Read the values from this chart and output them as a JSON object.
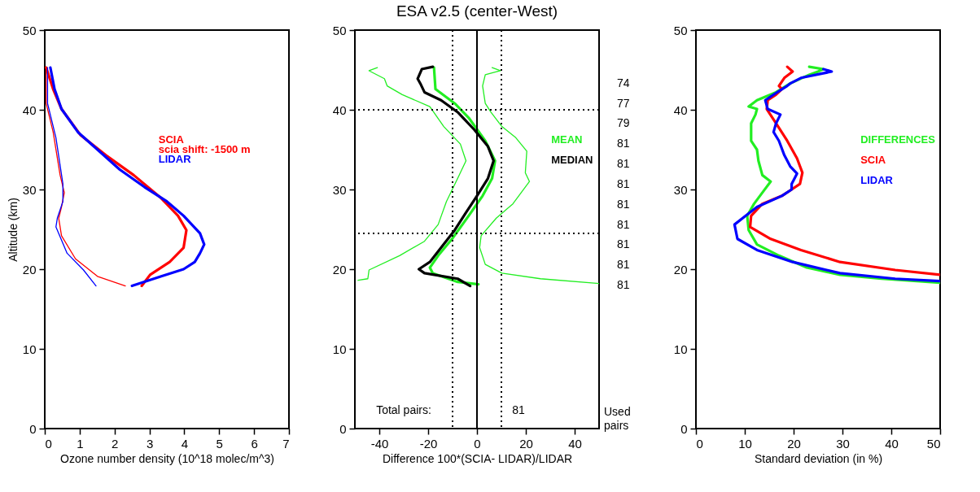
{
  "chart_data": [
    {
      "type": "line",
      "xlabel": "Ozone number density (10^18 molec/m^3)",
      "ylabel": "Altitude (km)",
      "xlim": [
        0,
        7
      ],
      "xticks": [
        0,
        1,
        2,
        3,
        4,
        5,
        6,
        7
      ],
      "ylim": [
        0,
        50
      ],
      "yticks": [
        0,
        10,
        20,
        30,
        40,
        50
      ],
      "legend": "top right",
      "line_style": "solid",
      "annotations": [
        "scia shift: -1500 m"
      ],
      "series": [
        {
          "name": "SCIA",
          "color": "#ff0000",
          "x": [
            0.04,
            0.24,
            0.48,
            1.03,
            1.75,
            2.55,
            3.34,
            3.82,
            4.06,
            3.98,
            3.58,
            3.02,
            2.78
          ],
          "values": [
            45.3,
            42.6,
            40.1,
            36.8,
            34.3,
            31.8,
            28.9,
            26.7,
            24.9,
            22.7,
            20.9,
            19.3,
            17.9
          ]
        },
        {
          "name": "LIDAR",
          "color": "#0000ff",
          "x": [
            0.16,
            0.28,
            0.48,
            0.95,
            1.59,
            2.15,
            2.86,
            3.5,
            3.98,
            4.45,
            4.57,
            4.45,
            4.3,
            3.98,
            3.34,
            2.5
          ],
          "values": [
            45.3,
            42.6,
            40.1,
            37.2,
            34.7,
            32.5,
            30.3,
            28.5,
            26.7,
            24.5,
            23.1,
            22.0,
            20.9,
            20.0,
            19.1,
            17.9
          ]
        },
        {
          "color": "#ff0000",
          "x": [
            0.04,
            0.04,
            0.24,
            0.44,
            0.56,
            0.48,
            0.4,
            0.48,
            0.88,
            1.51,
            2.31
          ],
          "values": [
            45.3,
            40.8,
            37.2,
            31.8,
            29.6,
            27.8,
            26.4,
            24.2,
            21.3,
            19.1,
            17.9
          ]
        },
        {
          "color": "#0000ff",
          "x": [
            0.08,
            0.08,
            0.32,
            0.52,
            0.52,
            0.36,
            0.32,
            0.64,
            1.11,
            1.47
          ],
          "values": [
            45.3,
            40.8,
            36.5,
            30.7,
            28.5,
            26.4,
            25.3,
            22.0,
            19.9,
            17.9
          ]
        }
      ]
    },
    {
      "type": "line",
      "title": "ESA v2.5 (center-West)",
      "xlabel": "Difference 100*(SCIA- LIDAR)/LIDAR",
      "xlim": [
        -50,
        50
      ],
      "xticks": [
        -40,
        -20,
        0,
        20,
        40
      ],
      "ylim": [
        0,
        50
      ],
      "yticks": [
        0,
        10,
        20,
        30,
        40,
        50
      ],
      "legend": "top right",
      "line_style": "solid",
      "ref_lines": [
        {
          "axis": "x",
          "value": -10,
          "color": "#000000",
          "line_style": "dotted"
        },
        {
          "axis": "x",
          "value": 0,
          "color": "#000000",
          "line_style": "solid"
        },
        {
          "axis": "x",
          "value": 10,
          "color": "#000000",
          "line_style": "dotted"
        },
        {
          "axis": "y",
          "value": 40,
          "color": "#000000",
          "line_style": "dotted"
        },
        {
          "axis": "y",
          "value": 24.5,
          "color": "#000000",
          "line_style": "dotted"
        }
      ],
      "annotations": [
        "Total pairs:",
        "81",
        "74",
        "77",
        "79",
        "81",
        "81",
        "81",
        "81",
        "81",
        "81",
        "81",
        "81",
        "Used pairs"
      ],
      "series": [
        {
          "name": "MEAN",
          "color": "#22ee22",
          "x": [
            -17.6,
            -17.0,
            -9.1,
            -3.4,
            3.4,
            7.4,
            6.2,
            2.3,
            -3.4,
            -10.2,
            -15.9,
            -19.3,
            -18.1,
            -7.9,
            0.6
          ],
          "values": [
            45.3,
            42.6,
            40.8,
            39.0,
            36.1,
            33.6,
            31.4,
            29.2,
            26.7,
            23.8,
            21.7,
            20.2,
            19.5,
            18.4,
            18.1
          ]
        },
        {
          "name": "MEDIAN",
          "color": "#000000",
          "x": [
            -18.1,
            -22.6,
            -24.3,
            -23.2,
            -21.5,
            -14.7,
            -7.9,
            -5.7,
            -1.1,
            4.5,
            6.8,
            4.5,
            0,
            -4.5,
            -9.1,
            -14.7,
            -19.3,
            -23.8,
            -21.5,
            -7.9,
            -2.8
          ],
          "values": [
            45.4,
            45.1,
            43.9,
            43.3,
            42.2,
            41.2,
            39.7,
            39.0,
            37.5,
            35.4,
            33.6,
            31.4,
            29.2,
            27.1,
            24.9,
            22.7,
            20.9,
            20.0,
            19.5,
            18.8,
            17.9
          ]
        },
        {
          "color": "#22ee22",
          "x": [
            -40.8,
            -44.2,
            -37.9,
            -36.8,
            -30.6,
            -19.3,
            -13.6,
            -6.8,
            -4.5,
            -7.9,
            -12.5,
            -15.9,
            -21.5,
            -31.7,
            -44.2,
            -44.7,
            -48.7
          ],
          "values": [
            45.3,
            44.9,
            43.9,
            43.0,
            41.9,
            40.4,
            37.9,
            35.7,
            33.6,
            31.4,
            28.5,
            25.6,
            23.5,
            21.7,
            19.9,
            18.8,
            18.6
          ]
        },
        {
          "color": "#22ee22",
          "x": [
            6.2,
            9.6,
            3.4,
            2.3,
            3.4,
            5.7,
            10.2,
            15.9,
            20.4,
            19.8,
            21.5,
            14.7,
            7.9,
            1.7,
            1.1,
            3.4,
            10.2,
            26.0,
            50
          ],
          "values": [
            45.3,
            44.9,
            44.4,
            43.0,
            40.8,
            39.7,
            37.9,
            36.5,
            34.8,
            32.1,
            31.0,
            28.2,
            26.4,
            24.2,
            22.7,
            20.6,
            19.5,
            18.8,
            18.2
          ]
        }
      ]
    },
    {
      "type": "line",
      "xlabel": "Standard deviation (in %)",
      "xlim": [
        0,
        50
      ],
      "xticks": [
        0,
        10,
        20,
        30,
        40,
        50
      ],
      "ylim": [
        0,
        50
      ],
      "yticks": [
        0,
        10,
        20,
        30,
        40,
        50
      ],
      "legend": "top right",
      "line_style": "solid",
      "series": [
        {
          "name": "DIFFERENCES",
          "color": "#22ee22",
          "x": [
            23.2,
            26.1,
            25.0,
            23.2,
            19.3,
            16.4,
            12.5,
            10.8,
            12.5,
            12.2,
            11.3,
            11.3,
            12.5,
            12.8,
            13.6,
            15.3,
            13.6,
            11.9,
            10.5,
            10.8,
            12.5,
            17.0,
            22.7,
            29.5,
            38.0,
            50
          ],
          "values": [
            45.4,
            45.1,
            44.8,
            44.4,
            43.3,
            42.2,
            41.2,
            40.4,
            40.1,
            39.4,
            38.3,
            36.1,
            35.0,
            33.6,
            31.8,
            31.0,
            29.6,
            28.2,
            26.7,
            24.9,
            23.1,
            21.7,
            20.2,
            19.3,
            18.8,
            18.3
          ]
        },
        {
          "name": "SCIA",
          "color": "#ff0000",
          "x": [
            18.7,
            19.8,
            18.1,
            17.0,
            17.6,
            16.4,
            14.7,
            14.5,
            16.4,
            18.7,
            20.7,
            21.8,
            21.3,
            19.6,
            17.6,
            13.6,
            11.3,
            11.1,
            15.3,
            21.5,
            29.5,
            40.8,
            50
          ],
          "values": [
            45.4,
            44.8,
            44.0,
            43.0,
            42.6,
            41.9,
            41.2,
            40.1,
            38.3,
            36.1,
            33.9,
            32.1,
            30.7,
            30.0,
            29.2,
            28.2,
            26.7,
            25.3,
            23.8,
            22.4,
            20.9,
            19.9,
            19.3
          ]
        },
        {
          "name": "LIDAR",
          "color": "#0000ff",
          "x": [
            26.1,
            27.8,
            21.5,
            19.3,
            18.7,
            16.4,
            14.2,
            14.7,
            17.3,
            16.4,
            15.9,
            17.0,
            18.1,
            19.3,
            20.7,
            19.6,
            19.6,
            17.6,
            12.5,
            10.2,
            7.9,
            8.5,
            12.5,
            19.8,
            29.5,
            40.8,
            50
          ],
          "values": [
            45.1,
            44.8,
            44.0,
            43.3,
            43.0,
            42.1,
            41.2,
            40.1,
            39.4,
            38.3,
            37.2,
            36.1,
            34.3,
            32.9,
            32.0,
            30.7,
            30.0,
            29.2,
            27.8,
            26.7,
            25.6,
            23.8,
            22.4,
            20.9,
            19.5,
            18.8,
            18.5
          ]
        }
      ]
    }
  ]
}
